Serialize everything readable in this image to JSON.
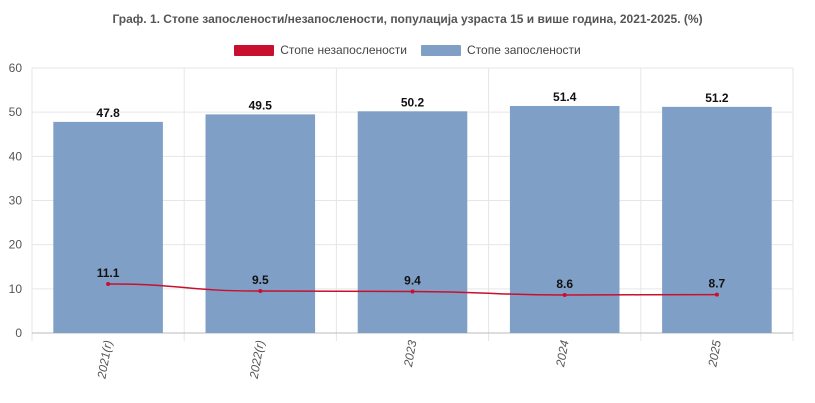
{
  "title": "Граф. 1. Стопе запослености/незапослености, популација узраста 15 и више година, 2021-2025. (%)",
  "legend": [
    {
      "label": "Стопе незапослености",
      "color": "#c8102e"
    },
    {
      "label": "Стопе запослености",
      "color": "#809fc6"
    }
  ],
  "chart_data": {
    "type": "bar",
    "categories": [
      "2021(r)",
      "2022(r)",
      "2023",
      "2024",
      "2025"
    ],
    "series": [
      {
        "name": "Стопе запослености",
        "type": "bar",
        "color": "#809fc6",
        "values": [
          47.8,
          49.5,
          50.2,
          51.4,
          51.2
        ]
      },
      {
        "name": "Стопе незапослености",
        "type": "line",
        "color": "#c8102e",
        "values": [
          11.1,
          9.5,
          9.4,
          8.6,
          8.7
        ]
      }
    ],
    "ylim": [
      0,
      60
    ],
    "yticks": [
      0,
      10,
      20,
      30,
      40,
      50,
      60
    ],
    "grid": true,
    "legend_position": "top-center",
    "x_tick_rotation": "vertical"
  }
}
